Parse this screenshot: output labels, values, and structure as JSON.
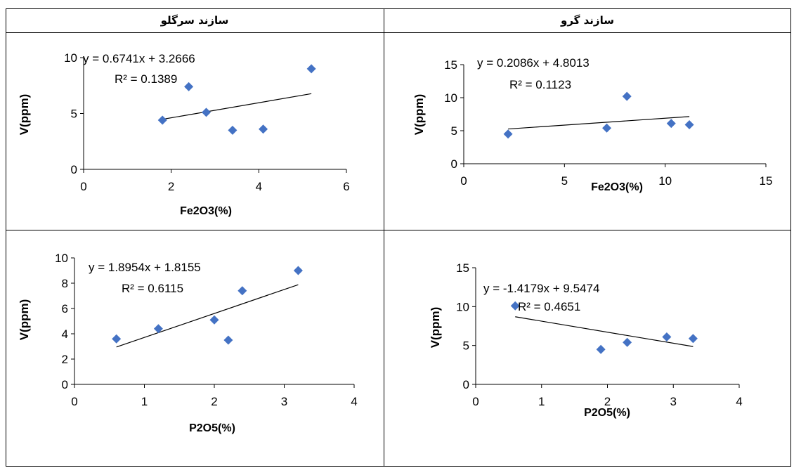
{
  "caption": "",
  "headers": {
    "left": "سازند سرگلو",
    "right": "سازند گرو"
  },
  "colors": {
    "marker": "#4472C4",
    "trendline": "#000000",
    "axis": "#000000"
  },
  "chart_data": [
    {
      "type": "scatter",
      "id": "tl",
      "xlabel": "Fe2O3(%)",
      "ylabel": "V(ppm)",
      "xlim": [
        0,
        6
      ],
      "ylim": [
        0,
        10
      ],
      "xticks": [
        "0",
        "2",
        "4",
        "6"
      ],
      "yticks": [
        "0",
        "5",
        "10"
      ],
      "points": [
        [
          1.8,
          4.4
        ],
        [
          2.4,
          7.4
        ],
        [
          2.8,
          5.1
        ],
        [
          3.4,
          3.5
        ],
        [
          4.1,
          3.6
        ],
        [
          5.2,
          9.0
        ]
      ],
      "trendline": {
        "slope": 0.6741,
        "intercept": 3.2666,
        "x_range": [
          1.8,
          5.2
        ]
      },
      "equation": "y = 0.6741x + 3.2666",
      "r2": "R² = 0.1389"
    },
    {
      "type": "scatter",
      "id": "tr",
      "xlabel": "Fe2O3(%)",
      "ylabel": "V(ppm)",
      "xlim": [
        0,
        15
      ],
      "ylim": [
        0,
        15
      ],
      "xticks": [
        "0",
        "5",
        "10",
        "15"
      ],
      "yticks": [
        "0",
        "5",
        "10",
        "15"
      ],
      "points": [
        [
          2.2,
          4.5
        ],
        [
          7.1,
          5.4
        ],
        [
          8.1,
          10.2
        ],
        [
          10.3,
          6.1
        ],
        [
          11.2,
          5.9
        ]
      ],
      "trendline": {
        "slope": 0.2086,
        "intercept": 4.8013,
        "x_range": [
          2.2,
          11.2
        ]
      },
      "equation": "y = 0.2086x + 4.8013",
      "r2": "R² = 0.1123"
    },
    {
      "type": "scatter",
      "id": "bl",
      "xlabel": "P2O5(%)",
      "ylabel": "V(ppm)",
      "xlim": [
        0,
        4
      ],
      "ylim": [
        0,
        10
      ],
      "xticks": [
        "0",
        "1",
        "2",
        "3",
        "4"
      ],
      "yticks": [
        "0",
        "2",
        "4",
        "6",
        "8",
        "10"
      ],
      "points": [
        [
          0.6,
          3.6
        ],
        [
          1.2,
          4.4
        ],
        [
          2.0,
          5.1
        ],
        [
          2.2,
          3.5
        ],
        [
          2.4,
          7.4
        ],
        [
          3.2,
          9.0
        ]
      ],
      "trendline": {
        "slope": 1.8954,
        "intercept": 1.8155,
        "x_range": [
          0.6,
          3.2
        ]
      },
      "equation": "y = 1.8954x + 1.8155",
      "r2": "R² = 0.6115"
    },
    {
      "type": "scatter",
      "id": "br",
      "xlabel": "P2O5(%)",
      "ylabel": "V(ppm)",
      "xlim": [
        0,
        4
      ],
      "ylim": [
        0,
        15
      ],
      "xticks": [
        "0",
        "1",
        "2",
        "3",
        "4"
      ],
      "yticks": [
        "0",
        "5",
        "10",
        "15"
      ],
      "points": [
        [
          0.6,
          10.1
        ],
        [
          1.9,
          4.5
        ],
        [
          2.3,
          5.4
        ],
        [
          2.9,
          6.1
        ],
        [
          3.3,
          5.9
        ]
      ],
      "trendline": {
        "slope": -1.4179,
        "intercept": 9.5474,
        "x_range": [
          0.6,
          3.3
        ]
      },
      "equation": "y = -1.4179x + 9.5474",
      "r2": "R² = 0.4651"
    }
  ]
}
